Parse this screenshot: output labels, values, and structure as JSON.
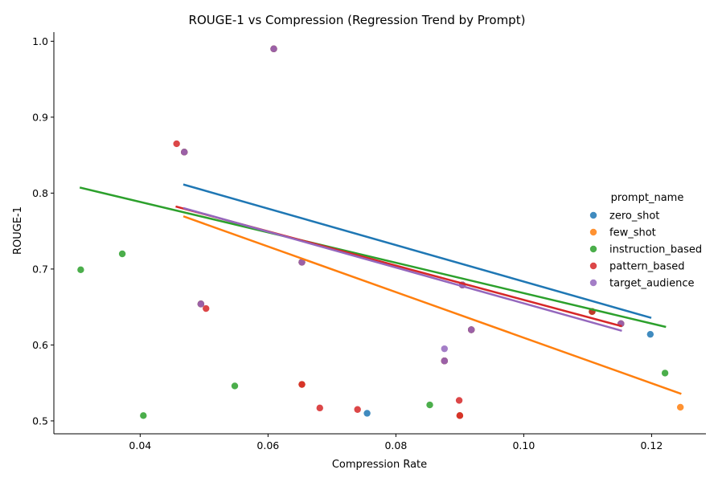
{
  "chart_data": {
    "type": "scatter",
    "title": "ROUGE-1 vs Compression (Regression Trend by Prompt)",
    "xlabel": "Compression Rate",
    "ylabel": "ROUGE-1",
    "xlim": [
      0.0265,
      0.1285
    ],
    "ylim": [
      0.483,
      1.012
    ],
    "xticks": [
      0.04,
      0.06,
      0.08,
      0.1,
      0.12
    ],
    "xtick_labels": [
      "0.04",
      "0.06",
      "0.08",
      "0.10",
      "0.12"
    ],
    "yticks": [
      0.5,
      0.6,
      0.7,
      0.8,
      0.9,
      1.0
    ],
    "ytick_labels": [
      "0.5",
      "0.6",
      "0.7",
      "0.8",
      "0.9",
      "1.0"
    ],
    "grid": false,
    "legend": {
      "title": "prompt_name",
      "position": "right"
    },
    "series": [
      {
        "name": "zero_shot",
        "color": "#1f77b4",
        "points": [
          [
            0.0469,
            0.854
          ],
          [
            0.0495,
            0.654
          ],
          [
            0.0609,
            0.99
          ],
          [
            0.0653,
            0.709
          ],
          [
            0.0653,
            0.548
          ],
          [
            0.0755,
            0.51
          ],
          [
            0.0876,
            0.579
          ],
          [
            0.09,
            0.507
          ],
          [
            0.0904,
            0.679
          ],
          [
            0.0918,
            0.62
          ],
          [
            0.1152,
            0.628
          ],
          [
            0.1198,
            0.614
          ]
        ],
        "trend": [
          [
            0.0469,
            0.811
          ],
          [
            0.1198,
            0.636
          ]
        ]
      },
      {
        "name": "few_shot",
        "color": "#ff7f0e",
        "points": [
          [
            0.0469,
            0.854
          ],
          [
            0.0495,
            0.654
          ],
          [
            0.0609,
            0.99
          ],
          [
            0.0653,
            0.548
          ],
          [
            0.0653,
            0.709
          ],
          [
            0.0876,
            0.579
          ],
          [
            0.09,
            0.507
          ],
          [
            0.0904,
            0.679
          ],
          [
            0.0918,
            0.62
          ],
          [
            0.1107,
            0.644
          ],
          [
            0.1152,
            0.628
          ],
          [
            0.1245,
            0.518
          ]
        ],
        "trend": [
          [
            0.0469,
            0.769
          ],
          [
            0.1245,
            0.536
          ]
        ]
      },
      {
        "name": "instruction_based",
        "color": "#2ca02c",
        "points": [
          [
            0.0307,
            0.699
          ],
          [
            0.0372,
            0.72
          ],
          [
            0.0405,
            0.507
          ],
          [
            0.0469,
            0.854
          ],
          [
            0.0495,
            0.654
          ],
          [
            0.0548,
            0.546
          ],
          [
            0.0609,
            0.99
          ],
          [
            0.0653,
            0.709
          ],
          [
            0.0853,
            0.521
          ],
          [
            0.0876,
            0.579
          ],
          [
            0.0904,
            0.679
          ],
          [
            0.0918,
            0.62
          ],
          [
            0.1107,
            0.644
          ],
          [
            0.1152,
            0.628
          ],
          [
            0.1221,
            0.563
          ]
        ],
        "trend": [
          [
            0.0307,
            0.807
          ],
          [
            0.1221,
            0.624
          ]
        ]
      },
      {
        "name": "pattern_based",
        "color": "#d62728",
        "points": [
          [
            0.0457,
            0.865
          ],
          [
            0.0469,
            0.854
          ],
          [
            0.0495,
            0.654
          ],
          [
            0.0503,
            0.648
          ],
          [
            0.0609,
            0.99
          ],
          [
            0.0653,
            0.709
          ],
          [
            0.0653,
            0.548
          ],
          [
            0.0681,
            0.517
          ],
          [
            0.074,
            0.515
          ],
          [
            0.0876,
            0.579
          ],
          [
            0.0899,
            0.527
          ],
          [
            0.09,
            0.507
          ],
          [
            0.0904,
            0.679
          ],
          [
            0.0918,
            0.62
          ],
          [
            0.1107,
            0.644
          ],
          [
            0.1152,
            0.628
          ]
        ],
        "trend": [
          [
            0.0457,
            0.782
          ],
          [
            0.1152,
            0.625
          ]
        ]
      },
      {
        "name": "target_audience",
        "color": "#9467bd",
        "points": [
          [
            0.0469,
            0.854
          ],
          [
            0.0495,
            0.654
          ],
          [
            0.0609,
            0.99
          ],
          [
            0.0653,
            0.709
          ],
          [
            0.0876,
            0.595
          ],
          [
            0.0876,
            0.579
          ],
          [
            0.0904,
            0.679
          ],
          [
            0.0918,
            0.62
          ],
          [
            0.1152,
            0.628
          ]
        ],
        "trend": [
          [
            0.0469,
            0.78
          ],
          [
            0.1152,
            0.619
          ]
        ]
      }
    ]
  }
}
